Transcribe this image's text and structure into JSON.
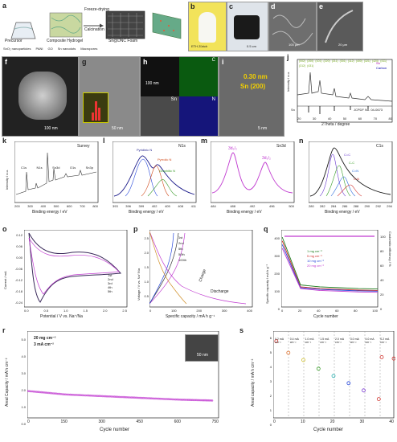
{
  "panels": {
    "a": {
      "label": "a",
      "precursor": "Precursor",
      "composite": "Composite Hydrogel",
      "foam": "Sn@DNC Foam",
      "step1": "Freeze-drying",
      "step2": "Calcination",
      "legend": [
        "SnO₂ nanoparticles",
        "PANI",
        "GO",
        "Sn nanodots",
        "Macropores"
      ]
    },
    "b": {
      "label": "b",
      "logo": "ETH Zürich"
    },
    "c": {
      "label": "c",
      "scale": "0.5 cm"
    },
    "d": {
      "label": "d",
      "scale": "100 μm"
    },
    "e": {
      "label": "e",
      "scale": "20 μm"
    },
    "f": {
      "label": "f",
      "scale": "100 nm"
    },
    "g": {
      "label": "g",
      "scale": "50 nm"
    },
    "h": {
      "label": "h",
      "scale": "100 nm",
      "elements": [
        "C",
        "Sn",
        "N"
      ]
    },
    "i": {
      "label": "i",
      "dspacing": "0.30 nm",
      "plane": "Sn (200)",
      "scale": "5 nm"
    },
    "j": {
      "label": "j",
      "xlabel": "2Theta / degree",
      "ylabel": "Intensity / a.u.",
      "legend": [
        "Sn",
        "Carbon"
      ],
      "ref_sn": "Sn",
      "ref_card": "JCPDF No. 04-0673",
      "peaks": [
        "(002)",
        "(200)",
        "(101)",
        "(220)",
        "(211)",
        "(301)",
        "(112)",
        "(400)",
        "(321)",
        "(420)",
        "(411)",
        "(312)",
        "(431)"
      ],
      "ticks": [
        "20",
        "30",
        "40",
        "50",
        "60",
        "70",
        "80"
      ]
    },
    "k": {
      "label": "k",
      "title": "Survey",
      "xlabel": "Binding energy / eV",
      "ylabel": "Intensity / a.u.",
      "ticks": [
        "200",
        "300",
        "400",
        "500",
        "600",
        "700",
        "800"
      ],
      "peaks": [
        "C1s",
        "N1s",
        "Sn3d",
        "O1s",
        "Sn3p"
      ]
    },
    "l": {
      "label": "l",
      "title": "N1s",
      "xlabel": "Binding energy / eV",
      "ticks": [
        "393",
        "396",
        "399",
        "402",
        "405",
        "408",
        "411"
      ],
      "components": [
        "Pyridinic N",
        "Pyrrolic N",
        "Graphitic N"
      ]
    },
    "m": {
      "label": "m",
      "title": "Sn3d",
      "xlabel": "Binding energy / eV",
      "ticks": [
        "484",
        "488",
        "492",
        "496",
        "500"
      ],
      "peaks": [
        "3d₅/₂",
        "3d₃/₂"
      ]
    },
    "n": {
      "label": "n",
      "title": "C1s",
      "xlabel": "Binding energy / eV",
      "ticks": [
        "280",
        "282",
        "284",
        "286",
        "288",
        "290",
        "292",
        "294"
      ],
      "components": [
        "C=C",
        "C-C",
        "C=N",
        "C-N"
      ]
    },
    "o": {
      "label": "o",
      "xlabel": "Potential / V vs. Na⁺/Na",
      "ylabel": "Current / mA",
      "xticks": [
        "0.0",
        "0.5",
        "1.0",
        "1.5",
        "2.0",
        "2.5"
      ],
      "yticks": [
        "0.12",
        "0.06",
        "0.00",
        "-0.06",
        "-0.12",
        "-0.18",
        "-0.24"
      ],
      "legend": [
        "1st",
        "2nd",
        "3rd",
        "4th",
        "5th"
      ]
    },
    "p": {
      "label": "p",
      "xlabel": "Specific capacity / mA h g⁻¹",
      "ylabel": "Voltage / V vs. Na⁺/Na",
      "xticks": [
        "0",
        "100",
        "200",
        "300",
        "400"
      ],
      "yticks": [
        "0.0",
        "0.5",
        "1.0",
        "1.5",
        "2.0",
        "2.5"
      ],
      "legend": [
        "1st",
        "2nd",
        "5th",
        "50th",
        "100th"
      ],
      "charge": "Charge",
      "discharge": "Discharge"
    },
    "q": {
      "label": "q",
      "xlabel": "Cycle number",
      "ylabel": "Specific capacity / mA h g⁻¹",
      "y2label": "Coulombic efficiency / %",
      "xticks": [
        "0",
        "20",
        "40",
        "60",
        "80",
        "100"
      ],
      "yticks": [
        "0",
        "100",
        "200",
        "300",
        "400"
      ],
      "y2ticks": [
        "0",
        "20",
        "40",
        "60",
        "80",
        "100"
      ],
      "legend": [
        "1 mg cm⁻²",
        "5 mg cm⁻²",
        "10 mg cm⁻²",
        "20 mg cm⁻²"
      ]
    },
    "r": {
      "label": "r",
      "xlabel": "Cycle number",
      "ylabel": "Areal Capacity / mA h cm⁻²",
      "xticks": [
        "0",
        "150",
        "300",
        "450",
        "600",
        "750"
      ],
      "yticks": [
        "0.0",
        "1.0",
        "2.0",
        "3.0",
        "4.0",
        "5.0"
      ],
      "note1": "20 mg cm⁻²",
      "note2": "3 mA cm⁻²",
      "scale": "50 nm"
    },
    "s": {
      "label": "s",
      "xlabel": "Cycle number",
      "ylabel": "Areal capacity / mA h cm⁻²",
      "xticks": [
        "0",
        "10",
        "20",
        "30",
        "40"
      ],
      "yticks": [
        "0",
        "1",
        "2",
        "3",
        "4",
        "5",
        "6"
      ],
      "rates": [
        "0.2 mA cm⁻²",
        "0.4 mA cm⁻²",
        "1.0 mA cm⁻²",
        "1.5 mA cm⁻²",
        "2.0 mA cm⁻²",
        "3.0 mA cm⁻²",
        "4.0 mA cm⁻²",
        "0.2 mA cm⁻²"
      ]
    }
  },
  "chart_data": [
    {
      "type": "line",
      "panel": "q",
      "x": [
        1,
        20,
        40,
        60,
        80,
        100
      ],
      "series": [
        {
          "name": "1 mg cm⁻²",
          "values": [
            380,
            120,
            110,
            105,
            100,
            98
          ]
        },
        {
          "name": "5 mg cm⁻²",
          "values": [
            360,
            110,
            100,
            96,
            92,
            90
          ]
        },
        {
          "name": "10 mg cm⁻²",
          "values": [
            340,
            105,
            96,
            92,
            88,
            86
          ]
        },
        {
          "name": "20 mg cm⁻²",
          "values": [
            320,
            100,
            90,
            86,
            82,
            80
          ]
        }
      ],
      "ylim": [
        0,
        420
      ]
    },
    {
      "type": "scatter",
      "panel": "r",
      "x": [
        1,
        150,
        300,
        450,
        600,
        730
      ],
      "values": [
        1.55,
        1.35,
        1.25,
        1.15,
        1.05,
        1.0
      ],
      "ylim": [
        0,
        5
      ]
    },
    {
      "type": "scatter",
      "panel": "s",
      "x": [
        1,
        5,
        10,
        15,
        20,
        25,
        30,
        35,
        36,
        40
      ],
      "values": [
        5.3,
        4.5,
        4.0,
        3.4,
        2.9,
        2.4,
        1.9,
        1.3,
        4.2,
        4.1
      ],
      "ylim": [
        0,
        6
      ]
    }
  ]
}
